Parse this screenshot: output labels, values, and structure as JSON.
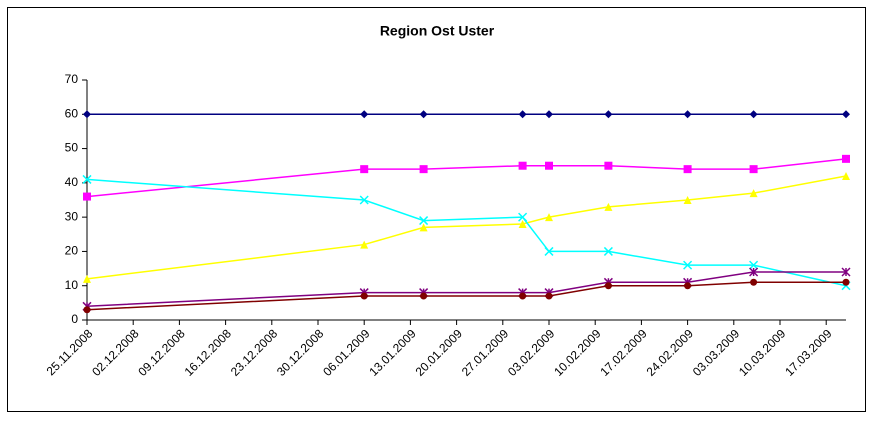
{
  "chart_data": {
    "type": "line",
    "title": "Region Ost Uster",
    "x": [
      "25.11.2008",
      "06.01.2009",
      "15.01.2009",
      "30.01.2009",
      "03.02.2009",
      "12.02.2009",
      "24.02.2009",
      "06.03.2009",
      "20.03.2009"
    ],
    "series": [
      {
        "color": "#000080",
        "marker": "diamond",
        "values": [
          60,
          60,
          60,
          60,
          60,
          60,
          60,
          60,
          60
        ]
      },
      {
        "color": "#ff00ff",
        "marker": "square",
        "values": [
          36,
          44,
          44,
          45,
          45,
          45,
          44,
          44,
          47
        ]
      },
      {
        "color": "#ffff00",
        "marker": "triangle",
        "values": [
          12,
          22,
          27,
          28,
          30,
          33,
          35,
          37,
          42
        ]
      },
      {
        "color": "#00ffff",
        "marker": "x",
        "values": [
          41,
          35,
          29,
          30,
          20,
          20,
          16,
          16,
          10
        ]
      },
      {
        "color": "#800080",
        "marker": "star",
        "values": [
          4,
          8,
          8,
          8,
          8,
          11,
          11,
          14,
          14
        ]
      },
      {
        "color": "#800000",
        "marker": "circle",
        "values": [
          3,
          7,
          7,
          7,
          7,
          10,
          10,
          11,
          11
        ]
      }
    ],
    "xlim": [
      "25.11.2008",
      "20.03.2009"
    ],
    "xticks": [
      "25.11.2008",
      "02.12.2008",
      "09.12.2008",
      "16.12.2008",
      "23.12.2008",
      "30.12.2008",
      "06.01.2009",
      "13.01.2009",
      "20.01.2009",
      "27.01.2009",
      "03.02.2009",
      "10.02.2009",
      "17.02.2009",
      "24.02.2009",
      "03.03.2009",
      "10.03.2009",
      "17.03.2009"
    ],
    "ylim": [
      0,
      70
    ],
    "yticks": [
      0,
      10,
      20,
      30,
      40,
      50,
      60,
      70
    ],
    "grid": false
  }
}
